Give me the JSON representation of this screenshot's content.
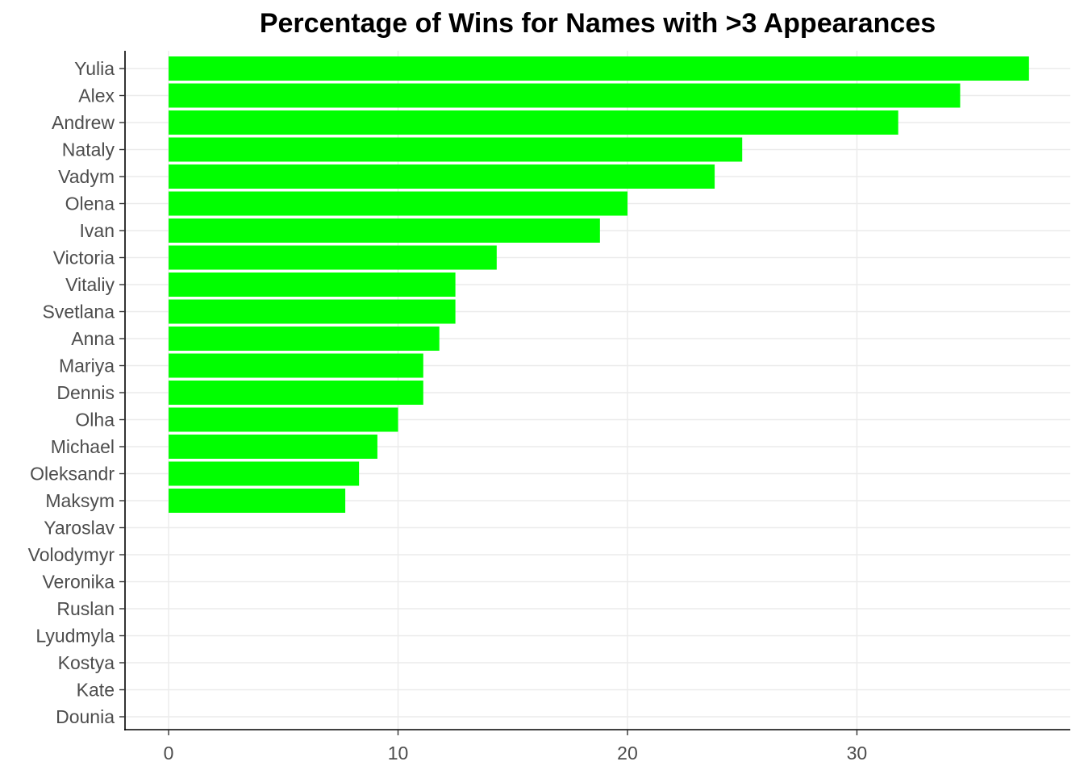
{
  "chart_data": {
    "type": "bar",
    "orientation": "horizontal",
    "title": "Percentage of Wins for Names with >3 Appearances",
    "xlabel": "",
    "ylabel": "",
    "categories": [
      "Yulia",
      "Alex",
      "Andrew",
      "Nataly",
      "Vadym",
      "Olena",
      "Ivan",
      "Victoria",
      "Vitaliy",
      "Svetlana",
      "Anna",
      "Mariya",
      "Dennis",
      "Olha",
      "Michael",
      "Oleksandr",
      "Maksym",
      "Yaroslav",
      "Volodymyr",
      "Veronika",
      "Ruslan",
      "Lyudmyla",
      "Kostya",
      "Kate",
      "Dounia"
    ],
    "values": [
      37.5,
      34.5,
      31.8,
      25.0,
      23.8,
      20.0,
      18.8,
      14.3,
      12.5,
      12.5,
      11.8,
      11.1,
      11.1,
      10.0,
      9.1,
      8.3,
      7.7,
      0,
      0,
      0,
      0,
      0,
      0,
      0,
      0
    ],
    "xlim": [
      -1.9,
      39.3
    ],
    "xticks": [
      0,
      10,
      20,
      30
    ],
    "grid": true,
    "legend": "none",
    "bar_color": "#00ff00",
    "grid_color": "#ebebeb",
    "axis_color": "#000000",
    "tick_label_color": "#4d4d4d"
  }
}
